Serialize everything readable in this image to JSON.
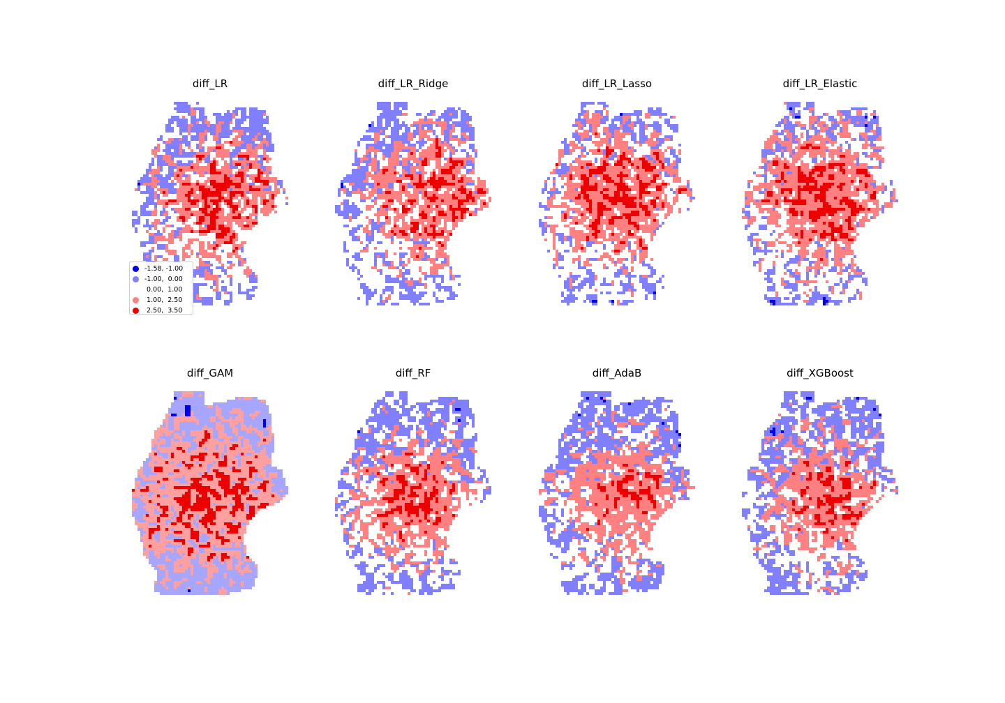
{
  "panels": [
    {
      "title": "diff_LR"
    },
    {
      "title": "diff_LR_Ridge"
    },
    {
      "title": "diff_LR_Lasso"
    },
    {
      "title": "diff_LR_Elastic"
    },
    {
      "title": "diff_GAM"
    },
    {
      "title": "diff_RF"
    },
    {
      "title": "diff_AdaB"
    },
    {
      "title": "diff_XGBoost"
    }
  ],
  "legend": {
    "entries": [
      {
        "label": "-1.58, -1.00",
        "color": "#0000ee"
      },
      {
        "label": "-1.00,  0.00",
        "color": "#8080ff"
      },
      {
        "label": " 0.00,  1.00",
        "color": "#ffffff"
      },
      {
        "label": " 1.00,  2.50",
        "color": "#ff8080"
      },
      {
        "label": " 2.50,  3.50",
        "color": "#ee0000"
      }
    ]
  },
  "colors": {
    "dark_blue": "#0000ee",
    "light_blue": "#8080ff",
    "pale_blue": "#a6a6ff",
    "pale_red": "#ffa0a0",
    "light_red": "#ff8080",
    "dark_red": "#ee0000"
  }
}
